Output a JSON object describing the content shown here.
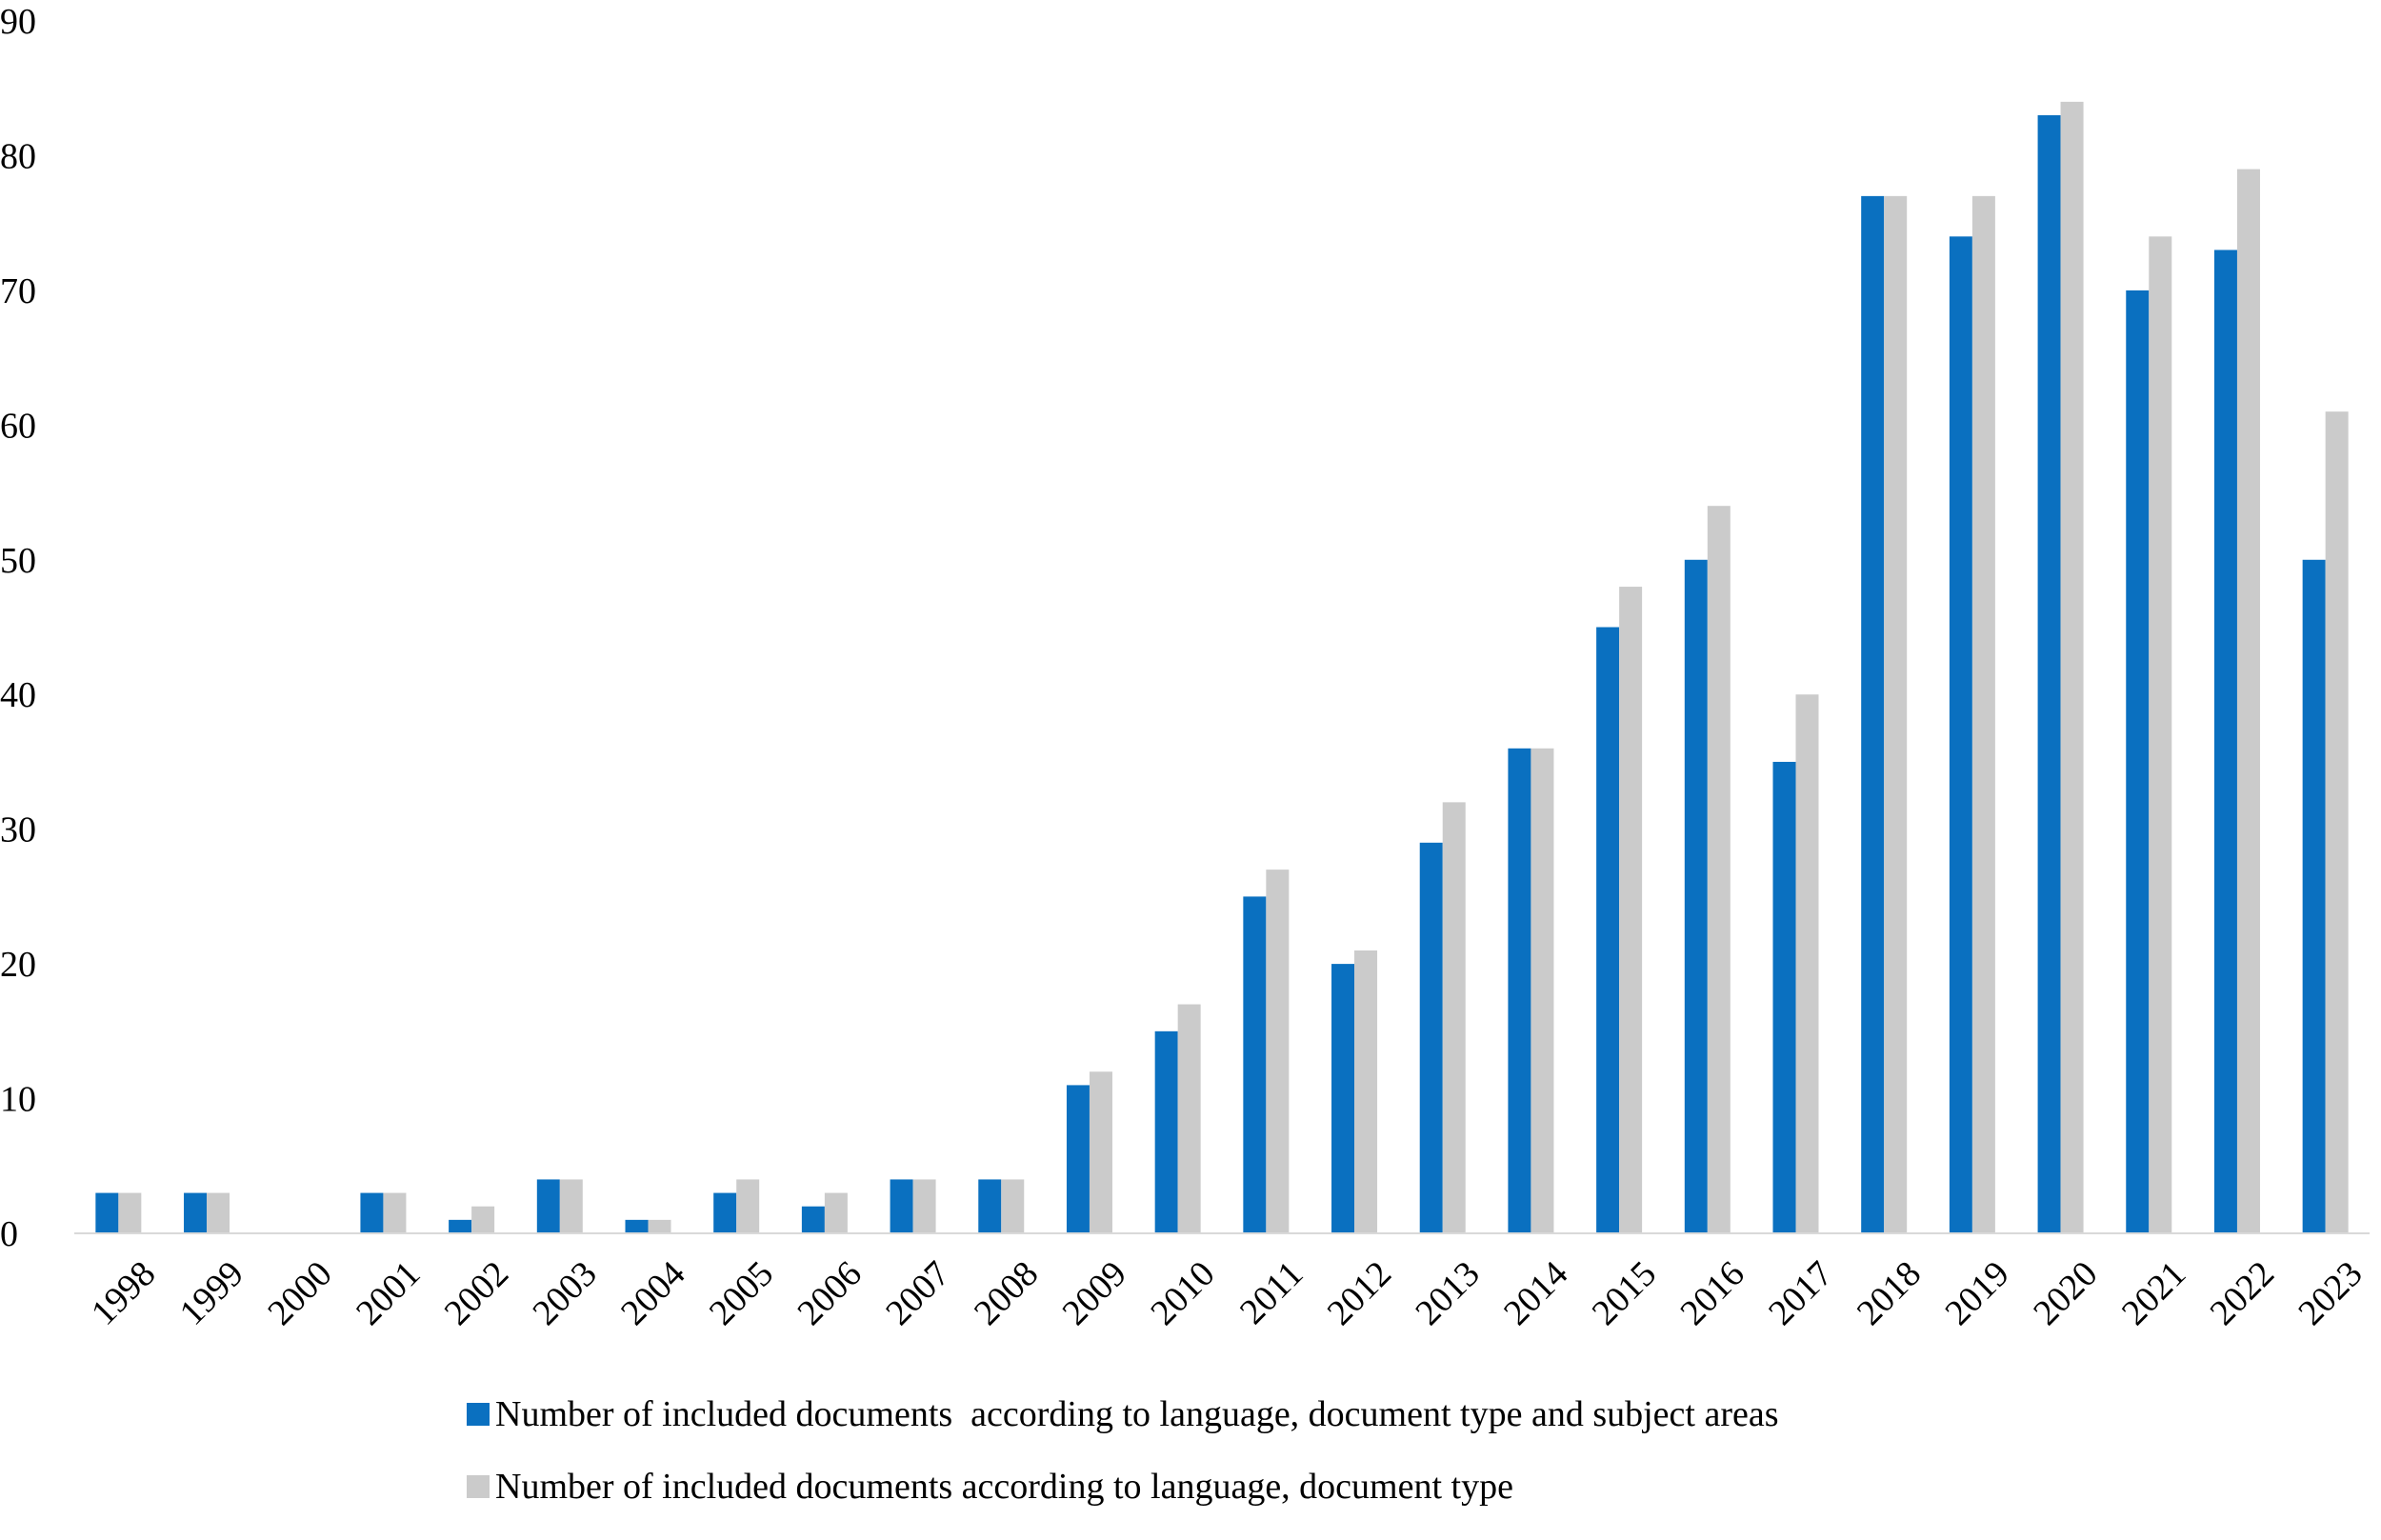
{
  "chart_data": {
    "type": "bar",
    "title": "",
    "xlabel": "",
    "ylabel": "",
    "ylim": [
      0,
      90
    ],
    "yticks": [
      0,
      10,
      20,
      30,
      40,
      50,
      60,
      70,
      80,
      90
    ],
    "grid": false,
    "legend_position": "bottom",
    "categories": [
      "1998",
      "1999",
      "2000",
      "2001",
      "2002",
      "2003",
      "2004",
      "2005",
      "2006",
      "2007",
      "2008",
      "2009",
      "2010",
      "2011",
      "2012",
      "2013",
      "2014",
      "2015",
      "2016",
      "2017",
      "2018",
      "2019",
      "2020",
      "2021",
      "2022",
      "2023"
    ],
    "series": [
      {
        "name": "Number of included documents  according to language, document type and subject areas",
        "color": "#0a70c0",
        "values": [
          3,
          3,
          0,
          3,
          1,
          4,
          1,
          3,
          2,
          4,
          4,
          11,
          15,
          25,
          20,
          29,
          36,
          45,
          50,
          35,
          77,
          74,
          83,
          70,
          73,
          50
        ]
      },
      {
        "name": "Number of included documents according to language, document type",
        "color": "#cbcbcb",
        "values": [
          3,
          3,
          0,
          3,
          2,
          4,
          1,
          4,
          3,
          4,
          4,
          12,
          17,
          27,
          21,
          32,
          36,
          48,
          54,
          40,
          77,
          77,
          84,
          74,
          79,
          61
        ]
      }
    ]
  }
}
